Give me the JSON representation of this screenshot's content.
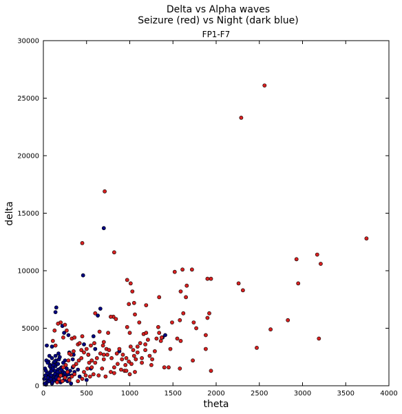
{
  "chart_data": {
    "type": "scatter",
    "title_line1": "Delta vs Alpha waves",
    "title_line2": "Seizure (red) vs Night (dark blue)",
    "subtitle": "FP1-F7",
    "xlabel": "theta",
    "ylabel": "delta",
    "xlim": [
      0,
      4000
    ],
    "ylim": [
      0,
      30000
    ],
    "xticks": [
      "0",
      "500",
      "1000",
      "1500",
      "2000",
      "2500",
      "3000",
      "3500",
      "4000"
    ],
    "yticks": [
      "0",
      "5000",
      "10000",
      "15000",
      "20000",
      "25000",
      "30000"
    ],
    "grid": false,
    "series": [
      {
        "color": "#000080",
        "points": [
          [
            30,
            100
          ],
          [
            40,
            300
          ],
          [
            50,
            500
          ],
          [
            60,
            800
          ],
          [
            70,
            1000
          ],
          [
            80,
            1200
          ],
          [
            90,
            1500
          ],
          [
            100,
            200
          ],
          [
            110,
            600
          ],
          [
            120,
            900
          ],
          [
            130,
            1300
          ],
          [
            140,
            1700
          ],
          [
            150,
            400
          ],
          [
            160,
            1000
          ],
          [
            170,
            1400
          ],
          [
            180,
            700
          ],
          [
            190,
            1100
          ],
          [
            200,
            300
          ],
          [
            210,
            1600
          ],
          [
            220,
            900
          ],
          [
            230,
            1200
          ],
          [
            240,
            500
          ],
          [
            250,
            2200
          ],
          [
            260,
            800
          ],
          [
            270,
            1500
          ],
          [
            280,
            400
          ],
          [
            290,
            1000
          ],
          [
            300,
            600
          ],
          [
            310,
            1300
          ],
          [
            320,
            200
          ],
          [
            330,
            900
          ],
          [
            340,
            1600
          ],
          [
            350,
            2700
          ],
          [
            60,
            2100
          ],
          [
            80,
            1800
          ],
          [
            100,
            2400
          ],
          [
            120,
            2000
          ],
          [
            140,
            2600
          ],
          [
            160,
            1900
          ],
          [
            180,
            2300
          ],
          [
            20,
            1500
          ],
          [
            25,
            900
          ],
          [
            35,
            2200
          ],
          [
            45,
            1100
          ],
          [
            55,
            700
          ],
          [
            65,
            400
          ],
          [
            75,
            1700
          ],
          [
            85,
            600
          ],
          [
            95,
            1300
          ],
          [
            105,
            300
          ],
          [
            115,
            1800
          ],
          [
            125,
            500
          ],
          [
            135,
            1000
          ],
          [
            145,
            2200
          ],
          [
            155,
            800
          ],
          [
            165,
            1200
          ],
          [
            175,
            2800
          ],
          [
            185,
            400
          ],
          [
            195,
            1500
          ],
          [
            205,
            900
          ],
          [
            40,
            3500
          ],
          [
            100,
            3400
          ],
          [
            150,
            6800
          ],
          [
            140,
            6400
          ],
          [
            220,
            5200
          ],
          [
            240,
            4600
          ],
          [
            290,
            4400
          ],
          [
            300,
            2900
          ],
          [
            340,
            2300
          ],
          [
            380,
            1900
          ],
          [
            400,
            1400
          ],
          [
            470,
            3600
          ],
          [
            520,
            2700
          ],
          [
            580,
            4300
          ],
          [
            600,
            3200
          ],
          [
            630,
            6100
          ],
          [
            660,
            6700
          ],
          [
            700,
            13700
          ],
          [
            460,
            9600
          ],
          [
            880,
            3000
          ],
          [
            1380,
            4200
          ],
          [
            1410,
            4400
          ],
          [
            360,
            1200
          ],
          [
            420,
            800
          ],
          [
            500,
            500
          ],
          [
            550,
            1500
          ],
          [
            15,
            200
          ],
          [
            10,
            600
          ],
          [
            30,
            1300
          ],
          [
            50,
            2000
          ],
          [
            70,
            2600
          ],
          [
            90,
            900
          ],
          [
            110,
            1500
          ],
          [
            130,
            2100
          ],
          [
            150,
            700
          ],
          [
            170,
            1900
          ],
          [
            190,
            2500
          ],
          [
            210,
            1400
          ],
          [
            230,
            2000
          ],
          [
            250,
            1100
          ]
        ]
      },
      {
        "color": "#d62020",
        "points": [
          [
            2560,
            26100
          ],
          [
            2290,
            23300
          ],
          [
            710,
            16900
          ],
          [
            3740,
            12800
          ],
          [
            450,
            12400
          ],
          [
            820,
            11600
          ],
          [
            3170,
            11400
          ],
          [
            3210,
            10600
          ],
          [
            2930,
            11000
          ],
          [
            2950,
            8900
          ],
          [
            1720,
            10100
          ],
          [
            1610,
            10100
          ],
          [
            1520,
            9900
          ],
          [
            1940,
            9300
          ],
          [
            1900,
            9300
          ],
          [
            970,
            9200
          ],
          [
            1010,
            8900
          ],
          [
            2260,
            8900
          ],
          [
            2310,
            8300
          ],
          [
            1030,
            8200
          ],
          [
            1590,
            8200
          ],
          [
            1660,
            8700
          ],
          [
            1340,
            7700
          ],
          [
            1050,
            7200
          ],
          [
            990,
            7100
          ],
          [
            1190,
            7000
          ],
          [
            1650,
            7700
          ],
          [
            1580,
            5700
          ],
          [
            1740,
            5500
          ],
          [
            1620,
            6300
          ],
          [
            1920,
            6300
          ],
          [
            1900,
            5900
          ],
          [
            2830,
            5700
          ],
          [
            2630,
            4900
          ],
          [
            1770,
            5000
          ],
          [
            810,
            6000
          ],
          [
            780,
            6000
          ],
          [
            840,
            5800
          ],
          [
            600,
            6300
          ],
          [
            650,
            4700
          ],
          [
            700,
            3800
          ],
          [
            750,
            4600
          ],
          [
            690,
            3500
          ],
          [
            730,
            3200
          ],
          [
            1110,
            5500
          ],
          [
            1060,
            6200
          ],
          [
            1000,
            4600
          ],
          [
            970,
            5100
          ],
          [
            1330,
            5100
          ],
          [
            1340,
            4600
          ],
          [
            1370,
            4200
          ],
          [
            1310,
            4100
          ],
          [
            1470,
            3200
          ],
          [
            1490,
            5500
          ],
          [
            1550,
            4100
          ],
          [
            1590,
            3900
          ],
          [
            1880,
            4400
          ],
          [
            1880,
            3200
          ],
          [
            2470,
            3300
          ],
          [
            3190,
            4100
          ],
          [
            1580,
            1500
          ],
          [
            1940,
            1300
          ],
          [
            1730,
            2200
          ],
          [
            1250,
            1800
          ],
          [
            1400,
            1600
          ],
          [
            1060,
            1200
          ],
          [
            1000,
            1000
          ],
          [
            900,
            1400
          ],
          [
            940,
            1300
          ],
          [
            820,
            1100
          ],
          [
            780,
            1200
          ],
          [
            720,
            800
          ],
          [
            680,
            1500
          ],
          [
            640,
            900
          ],
          [
            560,
            1600
          ],
          [
            590,
            3700
          ],
          [
            550,
            3500
          ],
          [
            620,
            2400
          ],
          [
            660,
            2800
          ],
          [
            700,
            2300
          ],
          [
            740,
            2700
          ],
          [
            790,
            2400
          ],
          [
            850,
            2800
          ],
          [
            880,
            3200
          ],
          [
            920,
            2700
          ],
          [
            960,
            2400
          ],
          [
            1010,
            3400
          ],
          [
            1040,
            3100
          ],
          [
            1090,
            3400
          ],
          [
            1120,
            3700
          ],
          [
            1160,
            4500
          ],
          [
            1190,
            4600
          ],
          [
            1210,
            4000
          ],
          [
            1180,
            3600
          ],
          [
            1140,
            2400
          ],
          [
            1090,
            2900
          ],
          [
            1050,
            2600
          ],
          [
            990,
            2100
          ],
          [
            950,
            1800
          ],
          [
            910,
            2300
          ],
          [
            200,
            5500
          ],
          [
            250,
            5300
          ],
          [
            270,
            4800
          ],
          [
            230,
            4200
          ],
          [
            330,
            4100
          ],
          [
            360,
            4200
          ],
          [
            400,
            3600
          ],
          [
            450,
            4300
          ],
          [
            420,
            3700
          ],
          [
            440,
            3100
          ],
          [
            500,
            3200
          ],
          [
            470,
            2900
          ],
          [
            520,
            2700
          ],
          [
            440,
            2400
          ],
          [
            410,
            2200
          ],
          [
            380,
            1900
          ],
          [
            350,
            1700
          ],
          [
            320,
            2700
          ],
          [
            290,
            2200
          ],
          [
            260,
            1800
          ],
          [
            230,
            1600
          ],
          [
            470,
            1200
          ],
          [
            510,
            1500
          ],
          [
            530,
            2000
          ],
          [
            560,
            2200
          ],
          [
            600,
            2000
          ],
          [
            580,
            1000
          ],
          [
            540,
            800
          ],
          [
            490,
            900
          ],
          [
            450,
            600
          ],
          [
            400,
            400
          ],
          [
            360,
            1000
          ],
          [
            330,
            800
          ],
          [
            300,
            500
          ],
          [
            280,
            1200
          ],
          [
            250,
            700
          ],
          [
            220,
            400
          ],
          [
            200,
            900
          ],
          [
            180,
            600
          ],
          [
            160,
            300
          ],
          [
            130,
            4800
          ],
          [
            170,
            5400
          ],
          [
            110,
            3900
          ],
          [
            140,
            3500
          ],
          [
            300,
            2800
          ],
          [
            350,
            3000
          ],
          [
            700,
            2700
          ],
          [
            760,
            3100
          ],
          [
            820,
            1600
          ],
          [
            860,
            1900
          ],
          [
            1070,
            2300
          ],
          [
            1140,
            2000
          ],
          [
            1230,
            2600
          ],
          [
            1290,
            3000
          ],
          [
            1020,
            1900
          ],
          [
            960,
            1300
          ],
          [
            1360,
            3900
          ],
          [
            1450,
            1600
          ],
          [
            1260,
            2300
          ],
          [
            1180,
            3100
          ]
        ]
      }
    ]
  }
}
